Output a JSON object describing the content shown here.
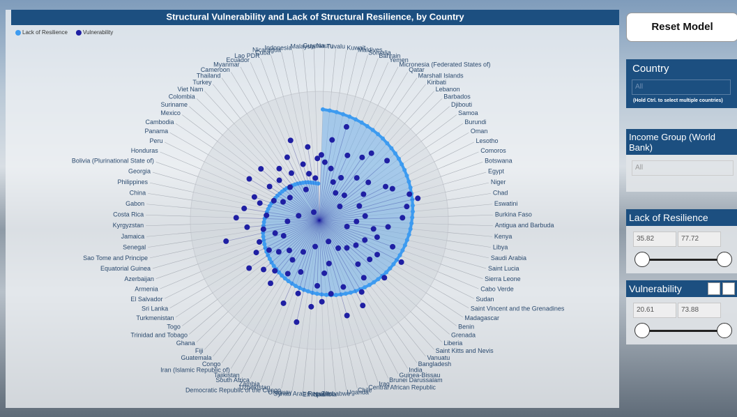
{
  "chart_data": {
    "type": "radial",
    "title": "Structural Vulnerability and Lack of Structural Resilience, by Country",
    "rlim": [
      15,
      80
    ],
    "categories": [
      "Nauru",
      "Tuvalu",
      "Kuwait",
      "Maldives",
      "Somalia",
      "Bahrain",
      "Yemen",
      "Micronesia (Federated States of)",
      "Qatar",
      "Marshall Islands",
      "Kiribati",
      "Lebanon",
      "Barbados",
      "Djibouti",
      "Samoa",
      "Burundi",
      "Oman",
      "Lesotho",
      "Comoros",
      "Botswana",
      "Egypt",
      "Niger",
      "Chad",
      "Eswatini",
      "Burkina Faso",
      "Antigua and Barbuda",
      "Kenya",
      "Libya",
      "Saudi Arabia",
      "Saint Lucia",
      "Sierra Leone",
      "Cabo Verde",
      "Sudan",
      "Saint Vincent and the Grenadines",
      "Madagascar",
      "Benin",
      "Grenada",
      "Liberia",
      "Saint Kitts and Nevis",
      "Vanuatu",
      "Bangladesh",
      "India",
      "Guinea-Bissau",
      "Brunei Darussalam",
      "Iraq",
      "Central African Republic",
      "Chile",
      "Uganda",
      "Zimbabwe",
      "Namibia",
      "Ethiopia",
      "Syrian Arab Republic",
      "Uruguay",
      "Democratic Republic of the Congo",
      "Uzbekistan",
      "Zambia",
      "South Africa",
      "Tajikistan",
      "Iran (Islamic Republic of)",
      "Congo",
      "Guatemala",
      "Fiji",
      "Ghana",
      "Trinidad and Tobago",
      "Togo",
      "Turkmenistan",
      "Sri Lanka",
      "El Salvador",
      "Armenia",
      "Azerbaijan",
      "Equatorial Guinea",
      "Sao Tome and Principe",
      "Senegal",
      "Jamaica",
      "Kyrgyzstan",
      "Costa Rica",
      "Gabon",
      "China",
      "Philippines",
      "Georgia",
      "Bolivia (Plurinational State of)",
      "Honduras",
      "Peru",
      "Panama",
      "Cambodia",
      "Mexico",
      "Suriname",
      "Colombia",
      "Viet Nam",
      "Turkey",
      "Thailand",
      "Cameroon",
      "Myanmar",
      "Ecuador",
      "Lao PDR",
      "Cuba",
      "Nicaragua",
      "Indonesia",
      "Malaysia",
      "Guyana"
    ],
    "series": [
      {
        "name": "Lack of Resilience",
        "color": "#3d9bf0",
        "values": [
          77.7,
          77.3,
          76.9,
          76.4,
          76.0,
          75.6,
          75.2,
          74.7,
          74.3,
          73.9,
          73.5,
          73.0,
          72.6,
          72.2,
          71.8,
          71.3,
          70.9,
          70.5,
          70.1,
          69.7,
          69.2,
          68.8,
          68.4,
          68.0,
          67.5,
          67.1,
          66.7,
          66.3,
          65.8,
          65.4,
          65.0,
          64.6,
          64.1,
          63.7,
          63.3,
          62.9,
          62.4,
          62.0,
          61.6,
          61.2,
          60.7,
          60.3,
          59.9,
          59.5,
          59.0,
          58.6,
          58.2,
          57.8,
          57.3,
          56.9,
          56.5,
          56.1,
          55.6,
          55.2,
          54.8,
          54.4,
          53.9,
          53.5,
          53.1,
          52.7,
          52.2,
          51.8,
          51.4,
          51.0,
          50.5,
          50.1,
          49.7,
          49.3,
          48.8,
          48.4,
          48.0,
          47.6,
          47.1,
          46.7,
          46.3,
          45.9,
          45.4,
          45.0,
          44.6,
          44.2,
          43.7,
          43.3,
          42.9,
          42.5,
          42.0,
          41.6,
          41.2,
          40.8,
          40.3,
          39.9,
          39.5,
          39.1,
          38.6,
          38.2,
          37.8,
          37.4,
          36.9,
          36.5,
          36.1,
          35.8
        ]
      },
      {
        "name": "Vulnerability",
        "color": "#1f1fa3",
        "values": [
          52,
          48,
          61,
          45,
          70,
          38,
          55,
          42,
          33,
          58,
          63,
          47,
          35,
          66,
          50,
          29,
          44,
          57,
          60,
          39,
          68,
          72,
          65,
          41,
          62,
          36,
          54,
          46,
          31,
          49,
          59,
          43,
          67,
          53,
          40,
          51,
          64,
          37,
          48,
          56,
          34,
          62,
          69,
          28,
          55,
          71,
          40,
          57,
          45,
          61,
          52,
          64,
          30,
          73.9,
          58,
          46,
          66,
          35,
          50,
          42,
          60,
          53,
          39,
          57,
          44,
          63,
          48,
          55,
          37,
          51,
          41,
          69,
          47,
          56,
          33,
          62,
          45,
          58,
          27,
          50,
          54,
          43,
          38,
          61,
          49,
          36,
          59,
          47,
          40,
          52,
          20.6,
          46,
          55,
          34,
          63,
          48,
          42,
          57,
          39,
          50
        ]
      }
    ]
  },
  "reset_button": "Reset Model",
  "slicers": {
    "country": {
      "title": "Country",
      "value": "All",
      "hint": "(Hold Ctrl. to select multiple countries)"
    },
    "income_group": {
      "title": "Income Group (World Bank)",
      "value": "All"
    },
    "lack_of_resilience": {
      "title": "Lack of Resilience",
      "min": 35.82,
      "max": 77.72
    },
    "vulnerability": {
      "title": "Vulnerability",
      "min": 20.61,
      "max": 73.88
    }
  }
}
